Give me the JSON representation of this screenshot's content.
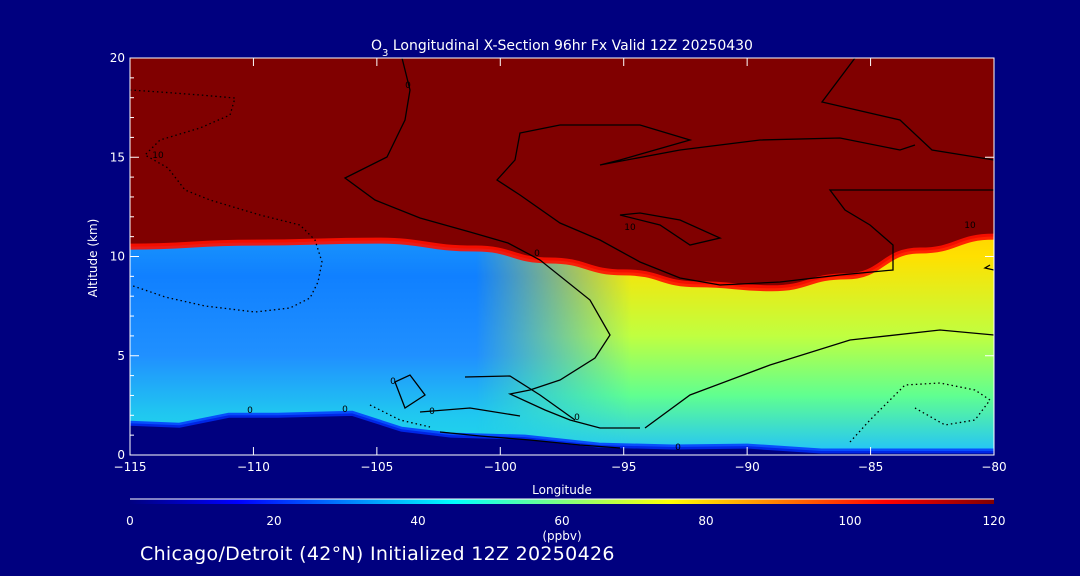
{
  "chart_data": {
    "type": "heatmap",
    "title_parts": [
      "O",
      "3",
      " Longitudinal X-Section 96hr  Fx Valid 12Z 20250430"
    ],
    "xlabel": "Longitude",
    "ylabel": "Altitude (km)",
    "xlim": [
      -115,
      -80
    ],
    "ylim": [
      0,
      20
    ],
    "x_ticks": [
      -115,
      -110,
      -105,
      -100,
      -95,
      -90,
      -85,
      -80
    ],
    "x_tick_labels": [
      "−115",
      "−110",
      "−105",
      "−100",
      "−95",
      "−90",
      "−85",
      "−80"
    ],
    "y_ticks": [
      0,
      5,
      10,
      15,
      20
    ],
    "y_tick_labels": [
      "0",
      "5",
      "10",
      "15",
      "20"
    ],
    "colorbar": {
      "unit": "(ppbv)",
      "range": [
        0,
        120
      ],
      "ticks": [
        0,
        20,
        40,
        60,
        80,
        100,
        120
      ],
      "tick_labels": [
        "0",
        "20",
        "40",
        "60",
        "80",
        "100",
        "120"
      ],
      "colors": [
        "#000080",
        "#0000ff",
        "#007fff",
        "#00ffff",
        "#7fff7f",
        "#ffff00",
        "#ff7f00",
        "#ff0000",
        "#800000"
      ]
    },
    "terrain_km": [
      [
        -115,
        1.6
      ],
      [
        -113,
        1.5
      ],
      [
        -111,
        2.0
      ],
      [
        -109,
        2.0
      ],
      [
        -106,
        2.1
      ],
      [
        -104,
        1.3
      ],
      [
        -102,
        1.0
      ],
      [
        -99,
        0.9
      ],
      [
        -96,
        0.5
      ],
      [
        -93,
        0.4
      ],
      [
        -90,
        0.45
      ],
      [
        -87,
        0.2
      ],
      [
        -84,
        0.2
      ],
      [
        -80,
        0.2
      ]
    ],
    "tropopause_km": [
      [
        -115,
        10.5
      ],
      [
        -110,
        10.7
      ],
      [
        -105,
        10.8
      ],
      [
        -101,
        10.4
      ],
      [
        -98,
        9.8
      ],
      [
        -95,
        9.2
      ],
      [
        -92,
        8.6
      ],
      [
        -89,
        8.4
      ],
      [
        -86,
        9.0
      ],
      [
        -83,
        10.3
      ],
      [
        -80,
        11.0
      ]
    ],
    "contour_labels": [
      "0",
      "0",
      "0",
      "0",
      "0",
      "0",
      "0",
      "0",
      "10",
      "10",
      "10"
    ]
  },
  "footer": "Chicago/Detroit (42°N) Initialized 12Z 20250426"
}
